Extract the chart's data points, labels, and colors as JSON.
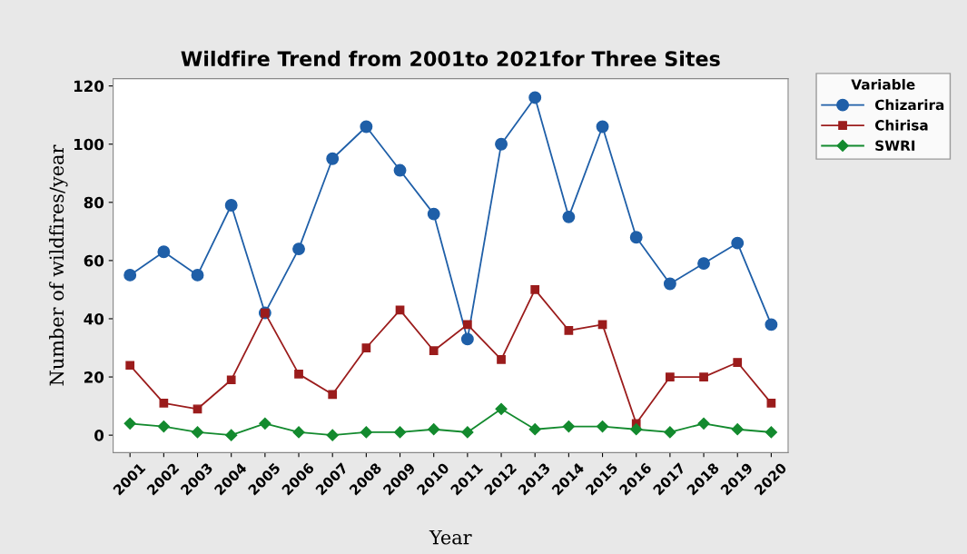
{
  "chart_data": {
    "type": "line",
    "title": "Wildfire Trend from 2001to 2021for Three Sites",
    "xlabel": "Year",
    "ylabel": "Number of wildfires/year",
    "legend_title": "Variable",
    "categories": [
      "2001",
      "2002",
      "2003",
      "2004",
      "2005",
      "2006",
      "2007",
      "2008",
      "2009",
      "2010",
      "2011",
      "2012",
      "2013",
      "2014",
      "2015",
      "2016",
      "2017",
      "2018",
      "2019",
      "2020"
    ],
    "series": [
      {
        "name": "Chizarira",
        "color": "#1f5fa8",
        "marker": "circle",
        "values": [
          55,
          63,
          55,
          79,
          42,
          64,
          95,
          106,
          91,
          76,
          33,
          100,
          116,
          75,
          106,
          68,
          52,
          59,
          66,
          38
        ]
      },
      {
        "name": "Chirisa",
        "color": "#9b1c1c",
        "marker": "square",
        "values": [
          24,
          11,
          9,
          19,
          42,
          21,
          14,
          30,
          43,
          29,
          38,
          26,
          50,
          36,
          38,
          4,
          20,
          20,
          25,
          11
        ]
      },
      {
        "name": "SWRI",
        "color": "#138a2e",
        "marker": "diamond",
        "values": [
          4,
          3,
          1,
          0,
          4,
          1,
          0,
          1,
          1,
          2,
          1,
          9,
          2,
          3,
          3,
          2,
          1,
          4,
          2,
          1
        ]
      }
    ],
    "ylim": [
      -6,
      122.5
    ],
    "yticks": [
      0,
      20,
      40,
      60,
      80,
      100,
      120
    ],
    "grid": false,
    "legend": "top right",
    "line_style": "solid"
  }
}
